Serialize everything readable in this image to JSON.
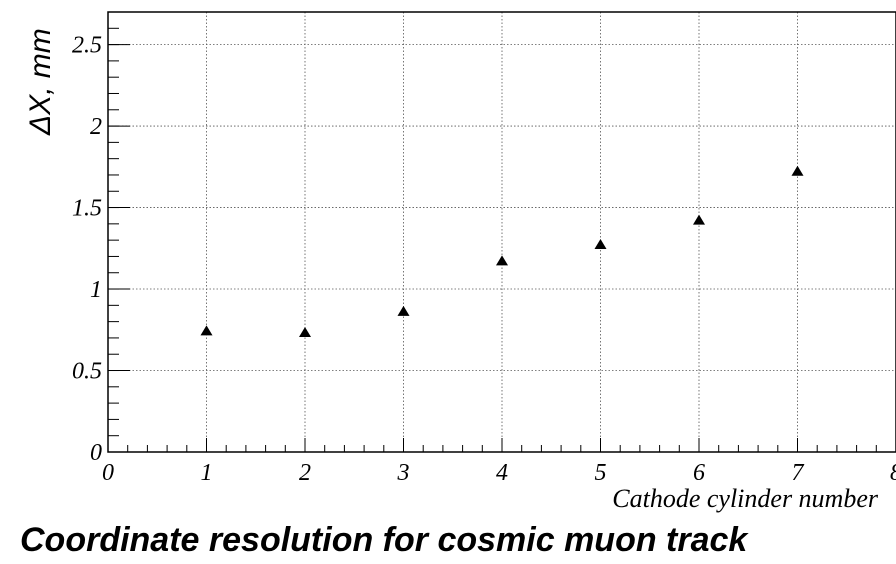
{
  "chart_data": {
    "type": "scatter",
    "title": "Coordinate resolution for cosmic muon track",
    "xlabel": "Cathode cylinder number",
    "ylabel": "ΔX, mm",
    "xlim": [
      0,
      8
    ],
    "ylim": [
      0,
      2.7
    ],
    "x_ticks": [
      "0",
      "1",
      "2",
      "3",
      "4",
      "5",
      "6",
      "7",
      "8"
    ],
    "y_ticks": [
      "0",
      "0.5",
      "1",
      "1.5",
      "2",
      "2.5"
    ],
    "grid": true,
    "marker": "triangle",
    "series": [
      {
        "x": [
          1,
          2,
          3,
          4,
          5,
          6,
          7
        ],
        "y": [
          0.74,
          0.73,
          0.86,
          1.17,
          1.27,
          1.42,
          1.72
        ]
      }
    ]
  }
}
